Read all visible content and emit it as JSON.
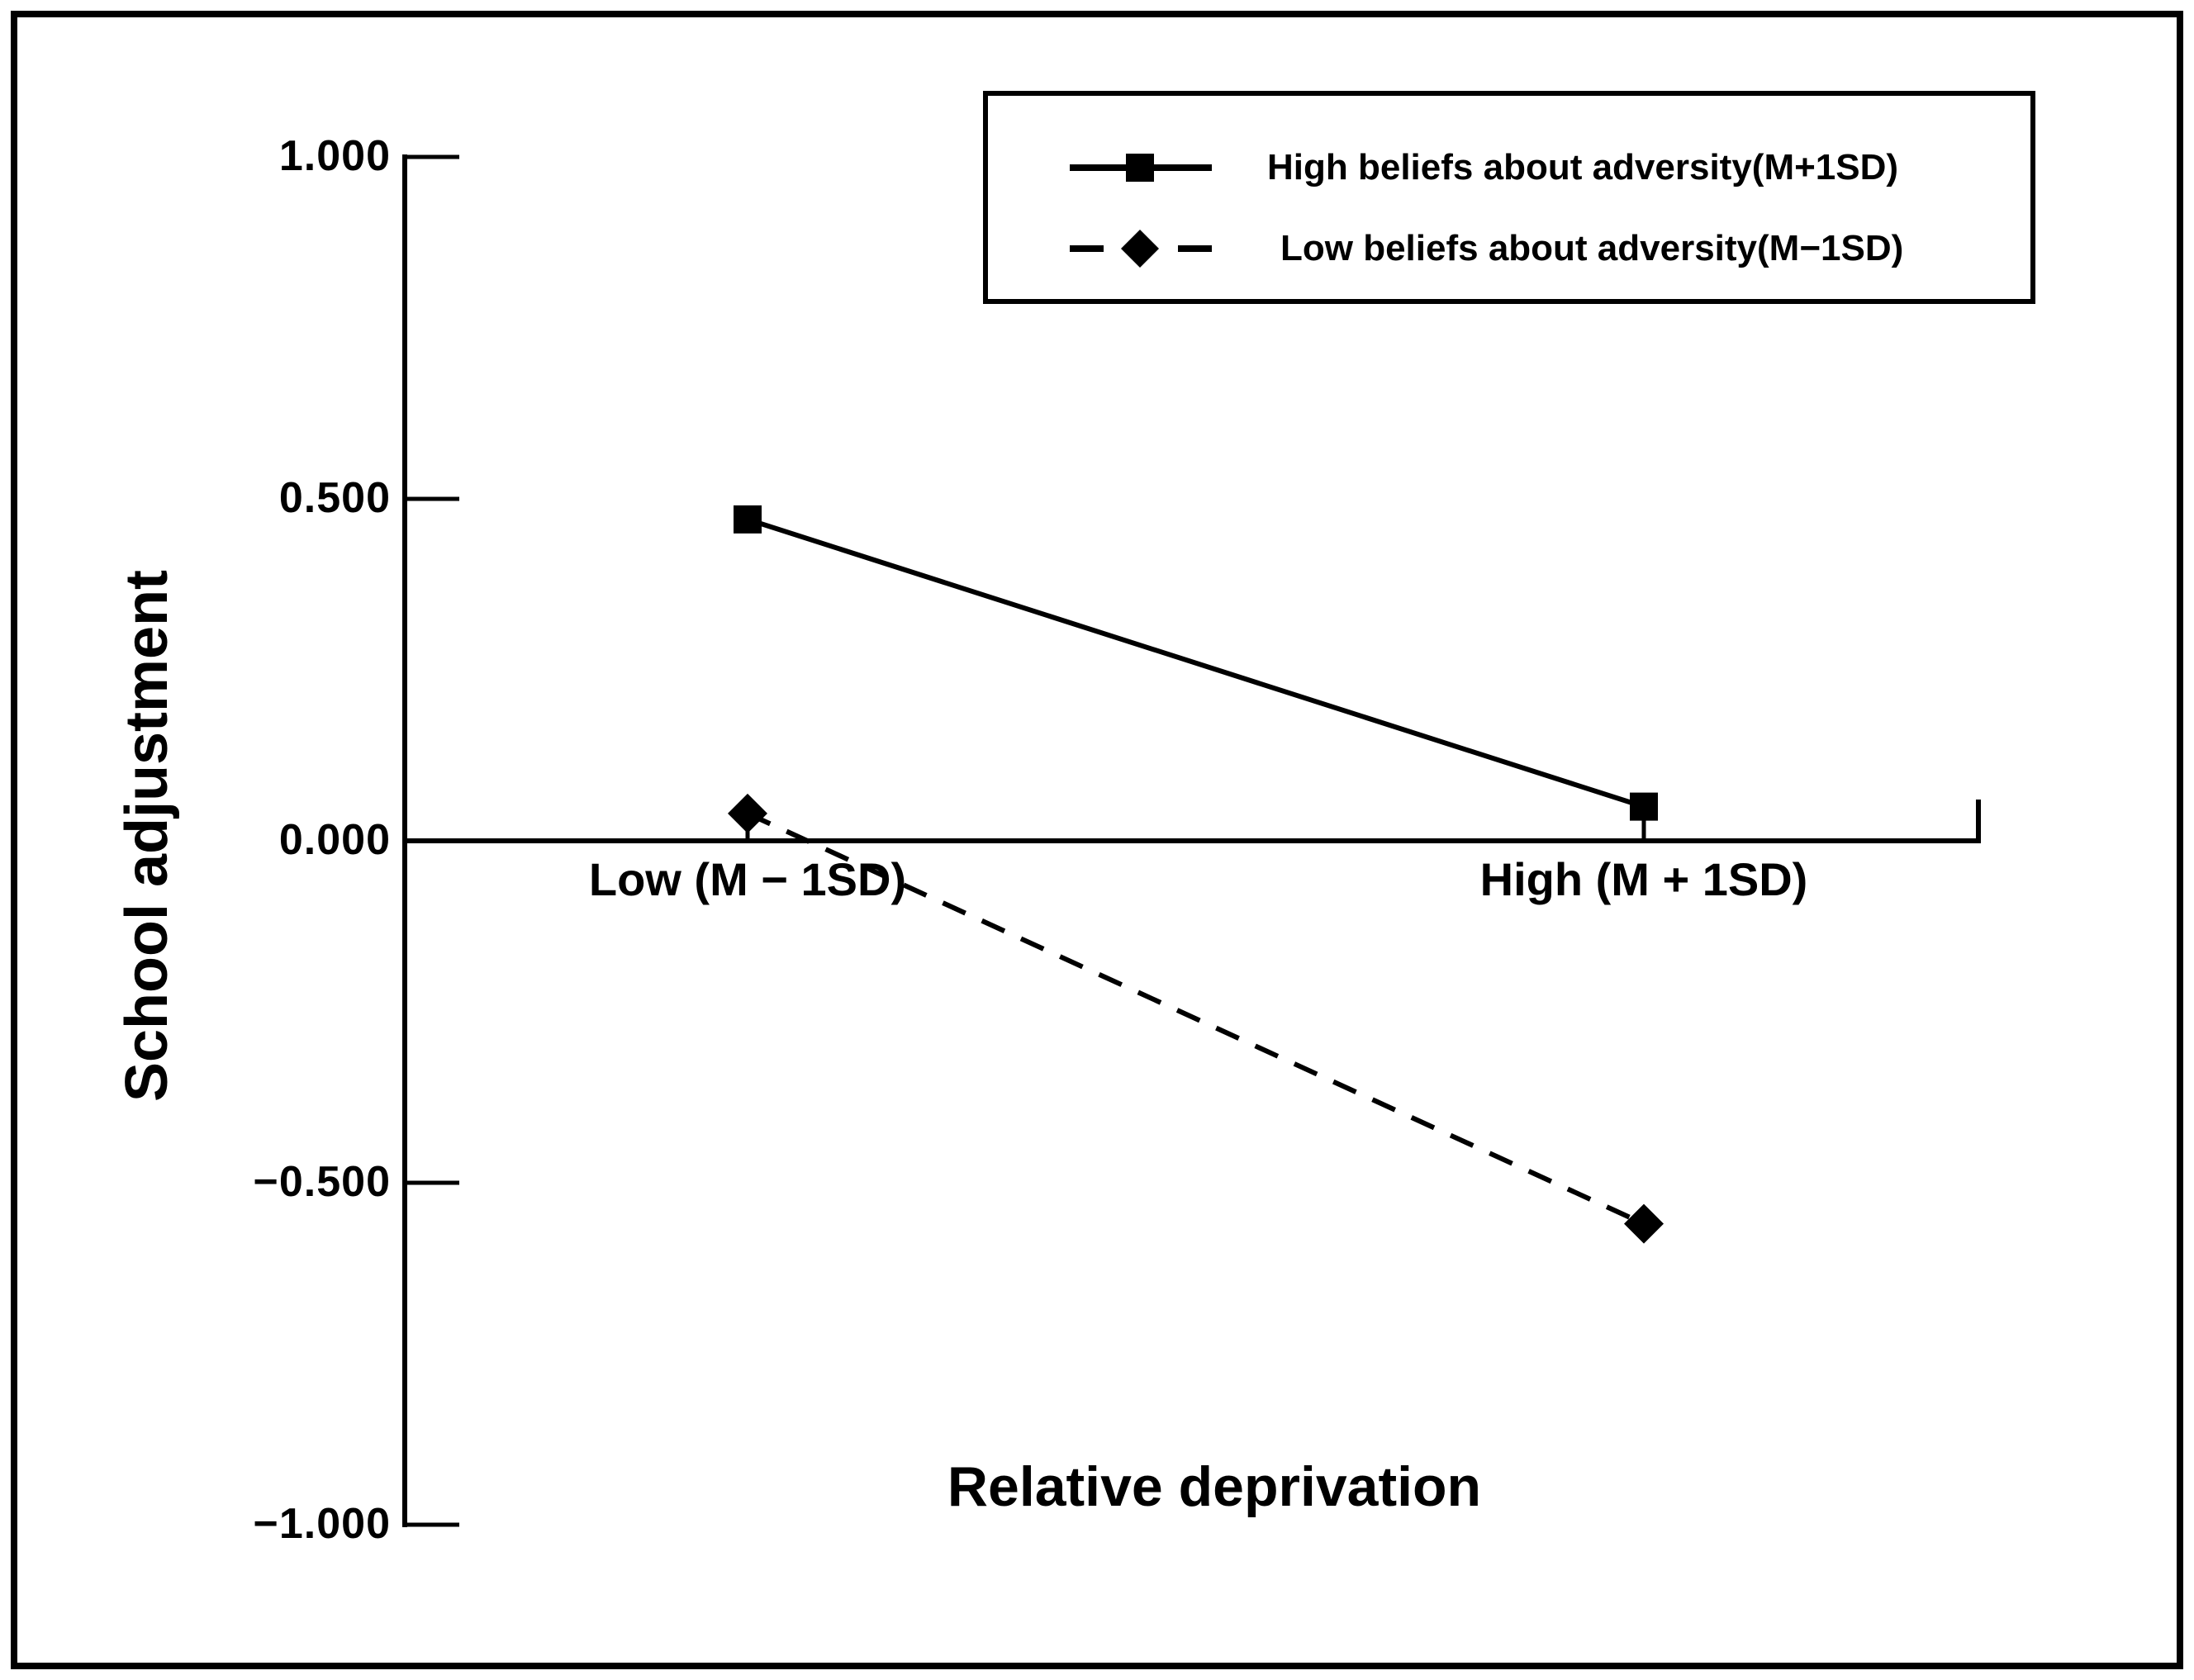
{
  "chart_data": {
    "type": "line",
    "title": "",
    "xlabel": "Relative deprivation",
    "ylabel": "School adjustment",
    "categories": [
      "Low (M − 1SD)",
      "High (M + 1SD)"
    ],
    "series": [
      {
        "name": "High beliefs about adversity(M+1SD)",
        "values": [
          0.47,
          0.05
        ],
        "line_style": "solid",
        "marker": "square",
        "color": "#000000"
      },
      {
        "name": "Low beliefs about adversity(M−1SD)",
        "values": [
          0.04,
          -0.56
        ],
        "line_style": "dashed",
        "marker": "diamond",
        "color": "#000000"
      }
    ],
    "ylim": [
      -1.0,
      1.0
    ],
    "yticks": [
      {
        "label": "1.000",
        "value": 1.0
      },
      {
        "label": "0.500",
        "value": 0.5
      },
      {
        "label": "0.000",
        "value": 0.0
      },
      {
        "label": "−0.500",
        "value": -0.5
      },
      {
        "label": "−1.000",
        "value": -1.0
      }
    ],
    "legend_position": "top-right",
    "grid": false,
    "axis_color": "#000000",
    "background": "#ffffff"
  }
}
